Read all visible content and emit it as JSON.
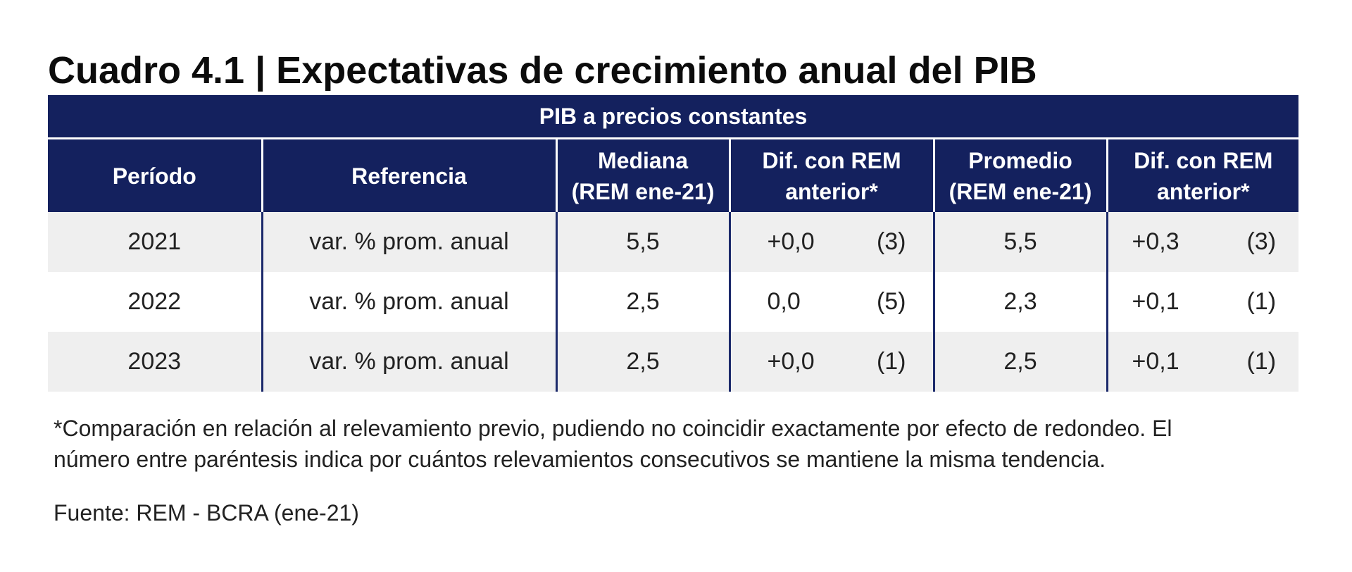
{
  "title": "Cuadro 4.1 | Expectativas de crecimiento anual del PIB",
  "table": {
    "super_header": "PIB a precios constantes",
    "headers": {
      "periodo": "Período",
      "referencia": "Referencia",
      "mediana_1": "Mediana",
      "mediana_2": "(REM ene-21)",
      "dif_mediana_1": "Dif. con REM",
      "dif_mediana_2": "anterior*",
      "promedio_1": "Promedio",
      "promedio_2": "(REM ene-21)",
      "dif_promedio_1": "Dif. con REM",
      "dif_promedio_2": "anterior*"
    },
    "rows": [
      {
        "periodo": "2021",
        "referencia": "var. % prom. anual",
        "mediana": "5,5",
        "dif_mediana": "+0,0",
        "dif_mediana_n": "(3)",
        "promedio": "5,5",
        "dif_promedio": "+0,3",
        "dif_promedio_n": "(3)"
      },
      {
        "periodo": "2022",
        "referencia": "var. % prom. anual",
        "mediana": "2,5",
        "dif_mediana": "0,0",
        "dif_mediana_n": "(5)",
        "promedio": "2,3",
        "dif_promedio": "+0,1",
        "dif_promedio_n": "(1)"
      },
      {
        "periodo": "2023",
        "referencia": "var. % prom. anual",
        "mediana": "2,5",
        "dif_mediana": "+0,0",
        "dif_mediana_n": "(1)",
        "promedio": "2,5",
        "dif_promedio": "+0,1",
        "dif_promedio_n": "(1)"
      }
    ]
  },
  "footnote_line1": "*Comparación en relación al relevamiento previo, pudiendo no coincidir exactamente por efecto de redondeo. El",
  "footnote_line2": "número entre paréntesis indica por cuántos relevamientos consecutivos se mantiene la misma tendencia.",
  "source": "Fuente: REM - BCRA (ene-21)",
  "colors": {
    "header_bg": "#14215e",
    "header_text": "#ffffff",
    "row_shade": "#efefef",
    "divider": "#1c2a6b"
  }
}
